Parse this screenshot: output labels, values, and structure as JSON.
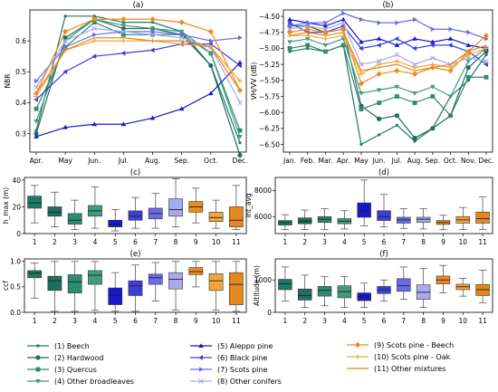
{
  "colors": {
    "1": "#1b7a63",
    "2": "#1f6e5e",
    "3": "#2f8a72",
    "4": "#3f9c80",
    "5": "#1818cc",
    "6": "#3d3ddc",
    "7": "#6b6be8",
    "8": "#a9a9ee",
    "9": "#ee8a1c",
    "10": "#f2a53a",
    "11": "#e6871a"
  },
  "groups": [
    "1",
    "2",
    "3",
    "4",
    "5",
    "6",
    "7",
    "8",
    "9",
    "10",
    "11"
  ],
  "chart_data": [
    {
      "id": "a",
      "type": "line",
      "title": "(a)",
      "ylabel": "NBR",
      "categories": [
        "Apr.",
        "May",
        "Jun.",
        "Jul.",
        "Aug.",
        "Sep.",
        "Oct.",
        "Dec."
      ],
      "ylim": [
        0.24,
        0.7
      ],
      "yticks": [
        0.3,
        0.4,
        0.5,
        0.6
      ],
      "series": [
        {
          "name": "(1) Beech",
          "values": [
            0.31,
            0.68,
            0.68,
            0.66,
            0.66,
            0.63,
            0.52,
            0.27
          ]
        },
        {
          "name": "(2) Hardwood",
          "values": [
            0.3,
            0.61,
            0.67,
            0.64,
            0.64,
            0.62,
            0.52,
            0.23
          ]
        },
        {
          "name": "(3) Quercus",
          "values": [
            0.38,
            0.58,
            0.66,
            0.62,
            0.62,
            0.62,
            0.56,
            0.31
          ]
        },
        {
          "name": "(4) Other broadleaves",
          "values": [
            0.34,
            0.6,
            0.67,
            0.65,
            0.64,
            0.63,
            0.56,
            0.29
          ]
        },
        {
          "name": "(5) Aleppo pine",
          "values": [
            0.29,
            0.32,
            0.33,
            0.33,
            0.35,
            0.38,
            0.43,
            0.53
          ]
        },
        {
          "name": "(6) Black pine",
          "values": [
            0.41,
            0.5,
            0.55,
            0.56,
            0.57,
            0.59,
            0.59,
            0.52
          ]
        },
        {
          "name": "(7) Scots pine",
          "values": [
            0.47,
            0.58,
            0.62,
            0.63,
            0.63,
            0.62,
            0.6,
            0.61
          ]
        },
        {
          "name": "(8) Other conifers",
          "values": [
            0.45,
            0.6,
            0.64,
            0.63,
            0.62,
            0.61,
            0.58,
            0.4
          ]
        },
        {
          "name": "(9) Scots pine - Beech",
          "values": [
            0.43,
            0.63,
            0.67,
            0.67,
            0.67,
            0.66,
            0.63,
            0.44
          ]
        },
        {
          "name": "(10) Scots pine - Oak",
          "values": [
            0.42,
            0.57,
            0.6,
            0.6,
            0.6,
            0.59,
            0.58,
            0.47
          ]
        },
        {
          "name": "(11) Other mixtures",
          "values": [
            0.43,
            0.57,
            0.61,
            0.61,
            0.6,
            0.6,
            0.58,
            0.44
          ]
        }
      ]
    },
    {
      "id": "b",
      "type": "line",
      "title": "(b)",
      "ylabel": "VH/VV (dB)",
      "categories": [
        "Jan.",
        "Feb.",
        "Mar.",
        "Apr.",
        "May",
        "Jun.",
        "Jul.",
        "Aug.",
        "Sep.",
        "Oct.",
        "Nov.",
        "Dec."
      ],
      "ylim": [
        -6.62,
        -4.4
      ],
      "yticks": [
        -6.5,
        -6.25,
        -6.0,
        -5.75,
        -5.5,
        -5.25,
        -5.0,
        -4.75,
        -4.5
      ],
      "ytick_labels": [
        "−6.50",
        "−6.25",
        "−6.00",
        "−5.75",
        "−5.50",
        "−5.25",
        "−5.00",
        "−4.75",
        "−4.50"
      ],
      "series": [
        {
          "name": "(1) Beech",
          "values": [
            -5.05,
            -5.0,
            -5.05,
            -4.95,
            -6.5,
            -6.35,
            -6.2,
            -6.45,
            -6.25,
            -5.75,
            -5.5,
            -5.1
          ]
        },
        {
          "name": "(2) Hardwood",
          "values": [
            -4.65,
            -4.65,
            -4.75,
            -4.7,
            -5.9,
            -6.1,
            -6.05,
            -6.4,
            -6.25,
            -6.05,
            -5.3,
            -5.05
          ]
        },
        {
          "name": "(3) Quercus",
          "values": [
            -5.0,
            -4.95,
            -5.05,
            -4.95,
            -5.95,
            -5.85,
            -5.75,
            -5.85,
            -5.75,
            -6.05,
            -5.45,
            -5.45
          ]
        },
        {
          "name": "(4) Other broadleaves",
          "values": [
            -4.9,
            -4.85,
            -4.95,
            -4.85,
            -5.7,
            -5.65,
            -5.6,
            -5.7,
            -5.6,
            -5.75,
            -5.2,
            -5.0
          ]
        },
        {
          "name": "(5) Aleppo pine",
          "values": [
            -4.55,
            -4.6,
            -4.65,
            -4.55,
            -4.9,
            -4.85,
            -4.95,
            -4.85,
            -4.9,
            -4.85,
            -4.95,
            -5.0
          ]
        },
        {
          "name": "(6) Black pine",
          "values": [
            -4.6,
            -4.75,
            -4.75,
            -4.65,
            -5.0,
            -4.95,
            -4.85,
            -5.0,
            -4.95,
            -4.95,
            -5.05,
            -5.25
          ]
        },
        {
          "name": "(7) Scots pine",
          "values": [
            -4.65,
            -4.6,
            -4.6,
            -4.45,
            -4.55,
            -4.6,
            -4.6,
            -4.55,
            -4.7,
            -4.7,
            -4.75,
            -4.85
          ]
        },
        {
          "name": "(8) Other conifers",
          "values": [
            -4.7,
            -4.65,
            -4.7,
            -4.6,
            -5.25,
            -5.2,
            -5.1,
            -5.25,
            -5.15,
            -5.25,
            -5.15,
            -5.2
          ]
        },
        {
          "name": "(9) Scots pine - Beech",
          "values": [
            -4.75,
            -4.7,
            -4.75,
            -4.7,
            -5.55,
            -5.4,
            -5.35,
            -5.4,
            -5.3,
            -5.35,
            -5.05,
            -4.8
          ]
        },
        {
          "name": "(10) Scots pine - Oak",
          "values": [
            -4.8,
            -4.8,
            -4.85,
            -4.8,
            -5.4,
            -5.25,
            -5.2,
            -5.3,
            -5.25,
            -5.3,
            -5.1,
            -5.0
          ]
        },
        {
          "name": "(11) Other mixtures",
          "values": [
            -4.8,
            -4.75,
            -4.8,
            -4.75,
            -5.35,
            -5.3,
            -5.25,
            -5.35,
            -5.3,
            -5.25,
            -5.05,
            -4.95
          ]
        }
      ]
    },
    {
      "id": "c",
      "type": "box",
      "title": "(c)",
      "ylabel": "h_max (m)",
      "ylim": [
        0,
        42
      ],
      "yticks": [
        0,
        20,
        40
      ],
      "categories": [
        "1",
        "2",
        "3",
        "4",
        "5",
        "6",
        "7",
        "8",
        "9",
        "10",
        "11"
      ],
      "boxes": [
        {
          "w1": 8,
          "q1": 19,
          "med": 23,
          "q3": 28,
          "w2": 36
        },
        {
          "w1": 5,
          "q1": 13,
          "med": 16,
          "q3": 20,
          "w2": 31
        },
        {
          "w1": 3,
          "q1": 7,
          "med": 10,
          "q3": 15,
          "w2": 25
        },
        {
          "w1": 4,
          "q1": 13,
          "med": 17,
          "q3": 21,
          "w2": 35
        },
        {
          "w1": 2,
          "q1": 5,
          "med": 7,
          "q3": 10,
          "w2": 18
        },
        {
          "w1": 4,
          "q1": 10,
          "med": 13,
          "q3": 17,
          "w2": 27
        },
        {
          "w1": 4,
          "q1": 11,
          "med": 15,
          "q3": 19,
          "w2": 30
        },
        {
          "w1": 5,
          "q1": 13,
          "med": 18,
          "q3": 26,
          "w2": 41
        },
        {
          "w1": 8,
          "q1": 16,
          "med": 20,
          "q3": 24,
          "w2": 34
        },
        {
          "w1": 4,
          "q1": 9,
          "med": 12,
          "q3": 16,
          "w2": 25
        },
        {
          "w1": 3,
          "q1": 5,
          "med": 10,
          "q3": 20,
          "w2": 36
        }
      ]
    },
    {
      "id": "d",
      "type": "box",
      "title": "(d)",
      "ylabel": "int_avg",
      "ylim": [
        4700,
        9000
      ],
      "yticks": [
        6000,
        8000
      ],
      "categories": [
        "1",
        "2",
        "3",
        "4",
        "5",
        "6",
        "7",
        "8",
        "9",
        "10",
        "11"
      ],
      "boxes": [
        {
          "w1": 5000,
          "q1": 5350,
          "med": 5550,
          "q3": 5700,
          "w2": 6150
        },
        {
          "w1": 5000,
          "q1": 5450,
          "med": 5650,
          "q3": 5900,
          "w2": 6500
        },
        {
          "w1": 5000,
          "q1": 5550,
          "med": 5800,
          "q3": 6000,
          "w2": 6600
        },
        {
          "w1": 5050,
          "q1": 5450,
          "med": 5650,
          "q3": 5850,
          "w2": 6450
        },
        {
          "w1": 5300,
          "q1": 5950,
          "med": 6450,
          "q3": 7050,
          "w2": 8800
        },
        {
          "w1": 5200,
          "q1": 5700,
          "med": 6000,
          "q3": 6450,
          "w2": 7700
        },
        {
          "w1": 5100,
          "q1": 5500,
          "med": 5750,
          "q3": 5950,
          "w2": 6600
        },
        {
          "w1": 5050,
          "q1": 5550,
          "med": 5800,
          "q3": 5950,
          "w2": 6600
        },
        {
          "w1": 5000,
          "q1": 5400,
          "med": 5550,
          "q3": 5700,
          "w2": 6100
        },
        {
          "w1": 5000,
          "q1": 5500,
          "med": 5750,
          "q3": 6000,
          "w2": 6700
        },
        {
          "w1": 5000,
          "q1": 5500,
          "med": 5850,
          "q3": 6350,
          "w2": 7500
        }
      ]
    },
    {
      "id": "e",
      "type": "box",
      "title": "(e)",
      "ylabel": "ccf",
      "ylim": [
        0,
        1.05
      ],
      "yticks": [
        0.0,
        0.5,
        1.0
      ],
      "ytick_labels": [
        "0.0",
        "0.5",
        "1.0"
      ],
      "categories": [
        "1",
        "2",
        "3",
        "4",
        "5",
        "6",
        "7",
        "8",
        "9",
        "10",
        "11"
      ],
      "boxes": [
        {
          "w1": 0.28,
          "q1": 0.68,
          "med": 0.77,
          "q3": 0.82,
          "w2": 0.97
        },
        {
          "w1": 0.02,
          "q1": 0.43,
          "med": 0.62,
          "q3": 0.71,
          "w2": 1.0
        },
        {
          "w1": 0.02,
          "q1": 0.38,
          "med": 0.6,
          "q3": 0.74,
          "w2": 1.0
        },
        {
          "w1": 0.04,
          "q1": 0.55,
          "med": 0.73,
          "q3": 0.82,
          "w2": 1.0
        },
        {
          "w1": 0.02,
          "q1": 0.15,
          "med": 0.33,
          "q3": 0.48,
          "w2": 0.78
        },
        {
          "w1": 0.02,
          "q1": 0.33,
          "med": 0.52,
          "q3": 0.62,
          "w2": 0.93
        },
        {
          "w1": 0.22,
          "q1": 0.55,
          "med": 0.68,
          "q3": 0.75,
          "w2": 0.98
        },
        {
          "w1": 0.04,
          "q1": 0.46,
          "med": 0.65,
          "q3": 0.78,
          "w2": 1.0
        },
        {
          "w1": 0.5,
          "q1": 0.74,
          "med": 0.8,
          "q3": 0.88,
          "w2": 1.0
        },
        {
          "w1": 0.04,
          "q1": 0.43,
          "med": 0.62,
          "q3": 0.76,
          "w2": 1.0
        },
        {
          "w1": 0.02,
          "q1": 0.15,
          "med": 0.55,
          "q3": 0.78,
          "w2": 1.0
        }
      ]
    },
    {
      "id": "f",
      "type": "box",
      "title": "(f)",
      "ylabel": "Altitude (m)",
      "ylim": [
        0,
        1650
      ],
      "yticks": [
        0,
        1000
      ],
      "categories": [
        "1",
        "2",
        "3",
        "4",
        "5",
        "6",
        "7",
        "8",
        "9",
        "10",
        "11"
      ],
      "boxes": [
        {
          "w1": 350,
          "q1": 700,
          "med": 880,
          "q3": 1020,
          "w2": 1400
        },
        {
          "w1": 150,
          "q1": 380,
          "med": 520,
          "q3": 720,
          "w2": 1150
        },
        {
          "w1": 200,
          "q1": 500,
          "med": 680,
          "q3": 800,
          "w2": 1100
        },
        {
          "w1": 150,
          "q1": 450,
          "med": 640,
          "q3": 820,
          "w2": 1100
        },
        {
          "w1": 150,
          "q1": 360,
          "med": 480,
          "q3": 600,
          "w2": 900
        },
        {
          "w1": 350,
          "q1": 580,
          "med": 700,
          "q3": 800,
          "w2": 1000
        },
        {
          "w1": 400,
          "q1": 650,
          "med": 820,
          "q3": 1040,
          "w2": 1400
        },
        {
          "w1": 150,
          "q1": 400,
          "med": 620,
          "q3": 850,
          "w2": 1350
        },
        {
          "w1": 600,
          "q1": 880,
          "med": 1000,
          "q3": 1120,
          "w2": 1450
        },
        {
          "w1": 500,
          "q1": 700,
          "med": 790,
          "q3": 870,
          "w2": 1050
        },
        {
          "w1": 300,
          "q1": 520,
          "med": 700,
          "q3": 860,
          "w2": 1300
        }
      ]
    }
  ],
  "legend": {
    "columns": [
      [
        {
          "label": "(1) Beech",
          "group": "1",
          "marker": "dot"
        },
        {
          "label": "(2) Hardwood",
          "group": "2",
          "marker": "circle"
        },
        {
          "label": "(3) Quercus",
          "group": "3",
          "marker": "square"
        },
        {
          "label": "(4) Other broadleaves",
          "group": "4",
          "marker": "tri-down"
        }
      ],
      [
        {
          "label": "(5) Aleppo pine",
          "group": "5",
          "marker": "tri-up"
        },
        {
          "label": "(6) Black pine",
          "group": "6",
          "marker": "tri-left"
        },
        {
          "label": "(7) Scots pine",
          "group": "7",
          "marker": "tri-right"
        },
        {
          "label": "(8) Other conifers",
          "group": "8",
          "marker": "x"
        }
      ],
      [
        {
          "label": "(9) Scots pine - Beech",
          "group": "9",
          "marker": "diamond"
        },
        {
          "label": "(10) Scots pine - Oak",
          "group": "10",
          "marker": "plus"
        },
        {
          "label": "(11) Other mixtures",
          "group": "11",
          "marker": "line"
        }
      ]
    ]
  }
}
